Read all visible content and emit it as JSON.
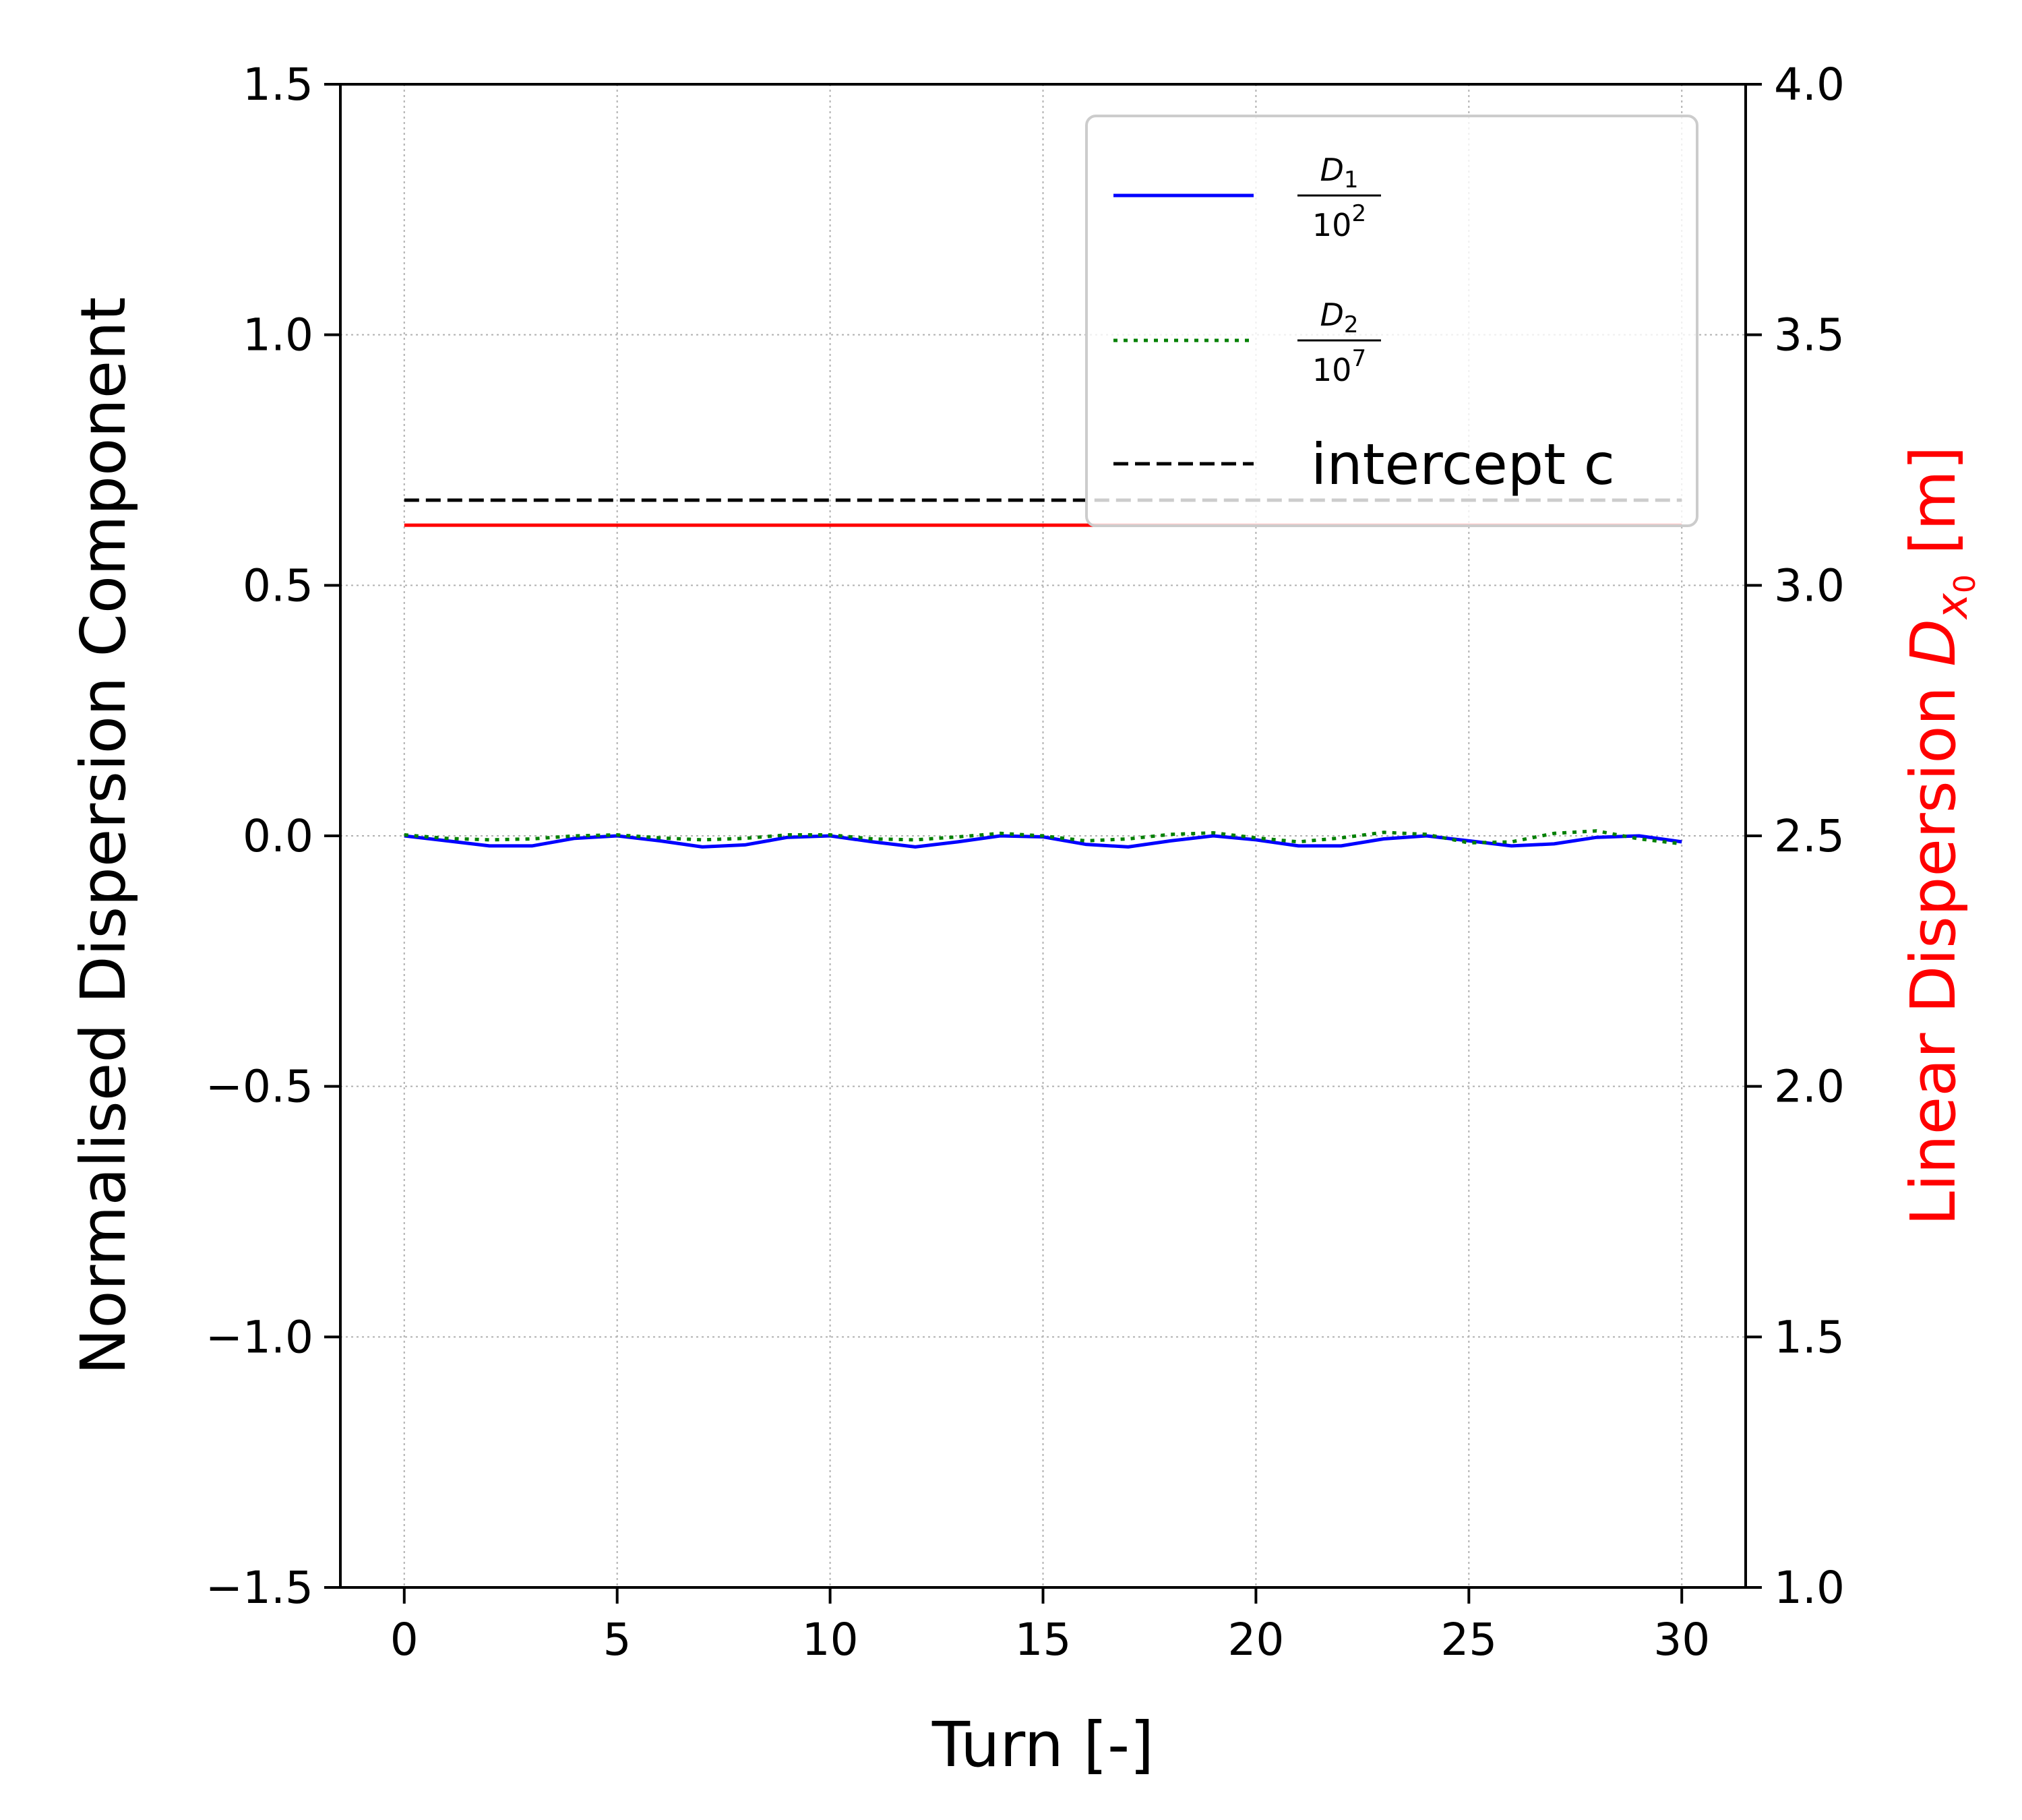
{
  "chart_data": {
    "type": "line",
    "xlabel": "Turn [-]",
    "ylabel": "Normalised Dispersion Component",
    "ylabel_right": {
      "text": "Linear Dispersion ",
      "symbol": "D",
      "sub": "x",
      "subsub": "0",
      "unit": " [m]",
      "color": "#ff0000"
    },
    "xlim": [
      -1.5,
      31.5
    ],
    "ylim": [
      -1.5,
      1.5
    ],
    "ylim_right": [
      1.0,
      4.0
    ],
    "xticks": [
      "0",
      "5",
      "10",
      "15",
      "20",
      "25",
      "30"
    ],
    "xtick_values": [
      0,
      5,
      10,
      15,
      20,
      25,
      30
    ],
    "yticks": [
      "1.5",
      "1.0",
      "0.5",
      "0.0",
      "−0.5",
      "−1.0",
      "−1.5"
    ],
    "ytick_values": [
      1.5,
      1.0,
      0.5,
      0.0,
      -0.5,
      -1.0,
      -1.5
    ],
    "yticks_right": [
      "4.0",
      "3.5",
      "3.0",
      "2.5",
      "2.0",
      "1.5",
      "1.0"
    ],
    "ytick_right_values": [
      4.0,
      3.5,
      3.0,
      2.5,
      2.0,
      1.5,
      1.0
    ],
    "grid": true,
    "legend_position": "top-right",
    "series": [
      {
        "name": "D1 / 10^2",
        "legend": {
          "sym": "D",
          "sub": "1",
          "den": "10",
          "exp": "2"
        },
        "axis": "left",
        "color": "#0000ff",
        "style": "solid",
        "x": [
          0,
          1,
          2,
          3,
          4,
          5,
          6,
          7,
          8,
          9,
          10,
          11,
          12,
          13,
          14,
          15,
          16,
          17,
          18,
          19,
          20,
          21,
          22,
          23,
          24,
          25,
          26,
          27,
          28,
          29,
          30
        ],
        "y": [
          0.0,
          -0.01,
          -0.02,
          -0.02,
          -0.005,
          0.0,
          -0.01,
          -0.022,
          -0.018,
          -0.003,
          0.0,
          -0.012,
          -0.022,
          -0.012,
          0.0,
          -0.002,
          -0.017,
          -0.022,
          -0.01,
          0.0,
          -0.008,
          -0.02,
          -0.02,
          -0.006,
          0.0,
          -0.01,
          -0.02,
          -0.016,
          -0.003,
          0.0,
          -0.012
        ]
      },
      {
        "name": "D2 / 10^7",
        "legend": {
          "sym": "D",
          "sub": "2",
          "den": "10",
          "exp": "7"
        },
        "axis": "left",
        "color": "#008000",
        "style": "dotted",
        "x": [
          0,
          1,
          2,
          3,
          4,
          5,
          6,
          7,
          8,
          9,
          10,
          11,
          12,
          13,
          14,
          15,
          16,
          17,
          18,
          19,
          20,
          21,
          22,
          23,
          24,
          25,
          26,
          27,
          28,
          29,
          30
        ],
        "y": [
          0.002,
          -0.005,
          -0.008,
          -0.006,
          0.0,
          0.002,
          -0.004,
          -0.008,
          -0.005,
          0.002,
          0.002,
          -0.006,
          -0.008,
          -0.002,
          0.005,
          0.0,
          -0.01,
          -0.006,
          0.003,
          0.006,
          -0.004,
          -0.012,
          -0.004,
          0.007,
          0.003,
          -0.014,
          -0.012,
          0.005,
          0.01,
          -0.006,
          -0.016
        ]
      },
      {
        "name": "intercept c",
        "axis": "left",
        "color": "#000000",
        "style": "dashed",
        "x": [
          0,
          30
        ],
        "y": [
          0.67,
          0.67
        ]
      },
      {
        "name": "",
        "axis": "right",
        "color": "#ff0000",
        "style": "solid",
        "x": [
          0,
          30
        ],
        "y": [
          3.12,
          3.12
        ]
      }
    ]
  }
}
